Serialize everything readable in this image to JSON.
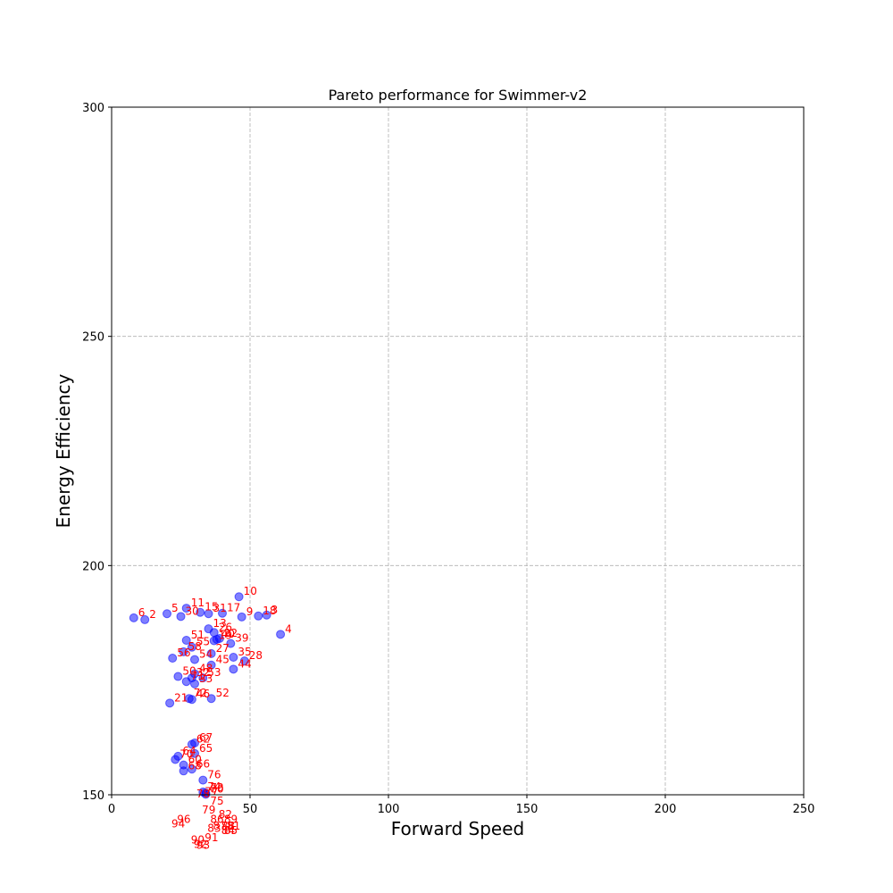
{
  "chart_data": {
    "type": "scatter",
    "title": "Pareto performance for Swimmer-v2",
    "xlabel": "Forward Speed",
    "ylabel": "Energy Efficiency",
    "xlim": [
      0,
      250
    ],
    "ylim": [
      150,
      300
    ],
    "xticks": [
      0,
      50,
      100,
      150,
      200,
      250
    ],
    "yticks": [
      150,
      200,
      250,
      300
    ],
    "xtick_labels": [
      "0",
      "50",
      "100",
      "150",
      "200",
      "250"
    ],
    "ytick_labels": [
      "150",
      "200",
      "250",
      "300"
    ],
    "grid": true,
    "point_color": "#0000ff",
    "label_color": "#ff0000",
    "points": [
      {
        "label": "2",
        "x": 12,
        "y": 188.2
      },
      {
        "label": "3",
        "x": 56,
        "y": 189.2
      },
      {
        "label": "4",
        "x": 61,
        "y": 185
      },
      {
        "label": "5",
        "x": 20,
        "y": 189.5
      },
      {
        "label": "6",
        "x": 8,
        "y": 188.6
      },
      {
        "label": "9",
        "x": 47,
        "y": 188.8
      },
      {
        "label": "10",
        "x": 46,
        "y": 193.2
      },
      {
        "label": "11",
        "x": 27,
        "y": 190.7
      },
      {
        "label": "13",
        "x": 35,
        "y": 186.2
      },
      {
        "label": "15",
        "x": 32,
        "y": 189.8
      },
      {
        "label": "17",
        "x": 40,
        "y": 189.6
      },
      {
        "label": "18",
        "x": 53,
        "y": 189
      },
      {
        "label": "19",
        "x": 37,
        "y": 183.6
      },
      {
        "label": "21",
        "x": 21,
        "y": 170
      },
      {
        "label": "22",
        "x": 39,
        "y": 184.1
      },
      {
        "label": "26",
        "x": 37,
        "y": 185.4
      },
      {
        "label": "27",
        "x": 36,
        "y": 180.8
      },
      {
        "label": "28",
        "x": 48,
        "y": 179.2
      },
      {
        "label": "30",
        "x": 25,
        "y": 188.9
      },
      {
        "label": "31",
        "x": 35,
        "y": 189.5
      },
      {
        "label": "32",
        "x": 29,
        "y": 175.5
      },
      {
        "label": "33",
        "x": 30,
        "y": 174.2
      },
      {
        "label": "35",
        "x": 44,
        "y": 180
      },
      {
        "label": "39",
        "x": 43,
        "y": 183
      },
      {
        "label": "40",
        "x": 38,
        "y": 183.9
      },
      {
        "label": "44",
        "x": 44,
        "y": 177.4
      },
      {
        "label": "45",
        "x": 36,
        "y": 178.3
      },
      {
        "label": "46",
        "x": 29,
        "y": 170.8
      },
      {
        "label": "48",
        "x": 30,
        "y": 176.4
      },
      {
        "label": "50",
        "x": 24,
        "y": 175.8
      },
      {
        "label": "51",
        "x": 27,
        "y": 183.7
      },
      {
        "label": "52",
        "x": 36,
        "y": 171
      },
      {
        "label": "53",
        "x": 33,
        "y": 175.5
      },
      {
        "label": "54",
        "x": 30,
        "y": 179.5
      },
      {
        "label": "55",
        "x": 29,
        "y": 182.2
      },
      {
        "label": "56",
        "x": 22,
        "y": 179.8
      },
      {
        "label": "58",
        "x": 26,
        "y": 181.2
      },
      {
        "label": "60",
        "x": 26,
        "y": 156.5
      },
      {
        "label": "62",
        "x": 29,
        "y": 161
      },
      {
        "label": "64",
        "x": 24,
        "y": 158.4
      },
      {
        "label": "65",
        "x": 30,
        "y": 159
      },
      {
        "label": "66",
        "x": 29,
        "y": 155.6
      },
      {
        "label": "67",
        "x": 30,
        "y": 161.3
      },
      {
        "label": "68",
        "x": 26,
        "y": 155.2
      },
      {
        "label": "70",
        "x": 23,
        "y": 157.7
      },
      {
        "label": "71",
        "x": 27,
        "y": 174.7
      },
      {
        "label": "72",
        "x": 28,
        "y": 171
      },
      {
        "label": "73",
        "x": 34,
        "y": 150.4
      },
      {
        "label": "74",
        "x": 33,
        "y": 150.6
      },
      {
        "label": "75",
        "x": 34,
        "y": 147.5
      },
      {
        "label": "76",
        "x": 33,
        "y": 153.2
      },
      {
        "label": "77",
        "x": 32,
        "y": 149.5
      },
      {
        "label": "78",
        "x": 29,
        "y": 149
      },
      {
        "label": "79",
        "x": 31,
        "y": 145.5
      },
      {
        "label": "80",
        "x": 34,
        "y": 150.1
      },
      {
        "label": "81",
        "x": 40,
        "y": 142
      },
      {
        "label": "82",
        "x": 37,
        "y": 144.5
      },
      {
        "label": "83",
        "x": 33,
        "y": 141.5
      },
      {
        "label": "84",
        "x": 38,
        "y": 141
      },
      {
        "label": "85",
        "x": 39,
        "y": 141
      },
      {
        "label": "86",
        "x": 34,
        "y": 143.5
      },
      {
        "label": "87",
        "x": 35,
        "y": 142
      },
      {
        "label": "88",
        "x": 38,
        "y": 142
      },
      {
        "label": "89",
        "x": 39,
        "y": 143.5
      },
      {
        "label": "90",
        "x": 27,
        "y": 139
      },
      {
        "label": "91",
        "x": 32,
        "y": 139.5
      },
      {
        "label": "92",
        "x": 28,
        "y": 138
      },
      {
        "label": "93",
        "x": 29,
        "y": 137.8
      },
      {
        "label": "94",
        "x": 20,
        "y": 142.5
      },
      {
        "label": "96",
        "x": 22,
        "y": 143.5
      }
    ]
  }
}
